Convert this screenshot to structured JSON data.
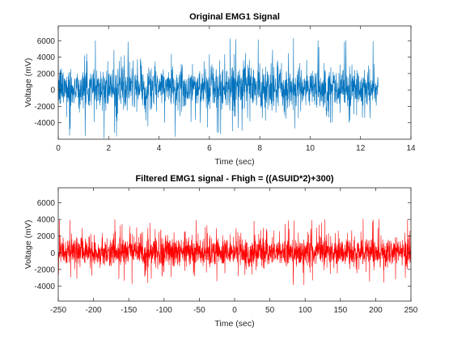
{
  "chart_data": [
    {
      "type": "line",
      "title": "Original EMG1 Signal",
      "xlabel": "Time (sec)",
      "ylabel": "Voltage (mV)",
      "xlim": [
        0,
        14
      ],
      "ylim": [
        -6000,
        7800
      ],
      "xticks": [
        0,
        2,
        4,
        6,
        8,
        10,
        12,
        14
      ],
      "yticks": [
        -4000,
        -2000,
        0,
        2000,
        4000,
        6000
      ],
      "grid": false,
      "series": [
        {
          "color": "#0072BD",
          "x_range": [
            0,
            12.7
          ],
          "envelope_values": [
            -6000,
            -4000,
            -2000,
            0,
            2000,
            4000,
            6000,
            7800
          ],
          "typical_band": [
            -3000,
            3500
          ],
          "peak_max": 7800,
          "peak_min": -6000
        }
      ]
    },
    {
      "type": "line",
      "title": "Filtered EMG1 signal - Fhigh = ((ASUID*2)+300)",
      "xlabel": "Time (sec)",
      "ylabel": "Voltage (mV)",
      "xlim": [
        -250,
        250
      ],
      "ylim": [
        -5800,
        7800
      ],
      "xticks": [
        -250,
        -200,
        -150,
        -100,
        -50,
        0,
        50,
        100,
        150,
        200,
        250
      ],
      "yticks": [
        -4000,
        -2000,
        0,
        2000,
        4000,
        6000
      ],
      "grid": false,
      "series": [
        {
          "color": "#FF0000",
          "x_range": [
            -250,
            250
          ],
          "typical_band": [
            -2000,
            2200
          ],
          "peak_max": 5300,
          "peak_min": -4500
        }
      ]
    }
  ]
}
